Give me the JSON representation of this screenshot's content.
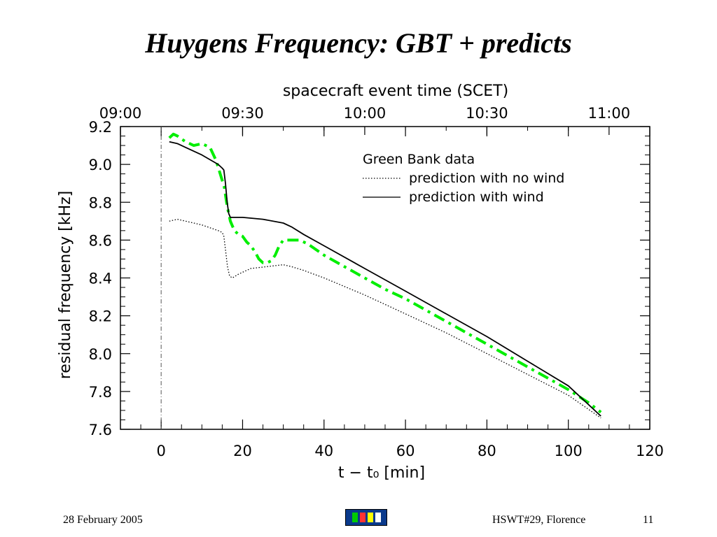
{
  "slide": {
    "title": "Huygens Frequency: GBT + predicts",
    "footer_date": "28 February 2005",
    "footer_event": "HSWT#29, Florence",
    "page_number": "11"
  },
  "colors": {
    "green": "#00ee00",
    "black": "#000000",
    "grey": "#444444",
    "logo_bg": "#0a3a8c"
  },
  "chart_data": {
    "type": "line",
    "xlabel": "t − t₀ [min]",
    "ylabel": "residual frequency [kHz]",
    "x2label": "spacecraft event time (SCET)",
    "xlim": [
      -10,
      120
    ],
    "ylim": [
      7.6,
      9.2
    ],
    "xticks": [
      0,
      20,
      40,
      60,
      80,
      100,
      120
    ],
    "xtick_labels": [
      "0",
      "20",
      "40",
      "60",
      "80",
      "100",
      "120"
    ],
    "yticks": [
      7.6,
      7.8,
      8.0,
      8.2,
      8.4,
      8.6,
      8.8,
      9.0,
      9.2
    ],
    "ytick_labels": [
      "7.6",
      "7.8",
      "8.0",
      "8.2",
      "8.4",
      "8.6",
      "8.8",
      "9.0",
      "9.2"
    ],
    "x2ticks": [
      -10,
      20,
      50,
      80,
      110
    ],
    "x2tick_labels": [
      "09:00",
      "09:30",
      "10:00",
      "10:30",
      "11:00"
    ],
    "reference_line_x": 0,
    "legend_position": "top-right",
    "series": [
      {
        "name": "Green Bank data",
        "style": "dashdot-green",
        "x": [
          2,
          3,
          4,
          6,
          8,
          10,
          12,
          13.5,
          14.5,
          15.5,
          16.2,
          17,
          18,
          19,
          20,
          21,
          22,
          23,
          24,
          25,
          26,
          27,
          28,
          29,
          30,
          32,
          34,
          36,
          40,
          45,
          50,
          55,
          60,
          65,
          70,
          75,
          80,
          85,
          90,
          95,
          100,
          105,
          108
        ],
        "y": [
          9.14,
          9.16,
          9.15,
          9.12,
          9.1,
          9.11,
          9.09,
          9.02,
          8.95,
          8.88,
          8.78,
          8.7,
          8.65,
          8.63,
          8.62,
          8.59,
          8.57,
          8.54,
          8.5,
          8.48,
          8.48,
          8.49,
          8.52,
          8.57,
          8.6,
          8.6,
          8.6,
          8.58,
          8.52,
          8.46,
          8.4,
          8.34,
          8.29,
          8.23,
          8.17,
          8.11,
          8.05,
          7.99,
          7.93,
          7.87,
          7.81,
          7.74,
          7.69
        ]
      },
      {
        "name": "prediction with no wind",
        "style": "dotted-black",
        "x": [
          2,
          4,
          6,
          10,
          14,
          15,
          15.4,
          15.8,
          16.3,
          16.8,
          17.5,
          19,
          22,
          26,
          30,
          32,
          35,
          40,
          50,
          60,
          70,
          80,
          90,
          100,
          108
        ],
        "y": [
          8.7,
          8.71,
          8.7,
          8.68,
          8.65,
          8.64,
          8.62,
          8.55,
          8.46,
          8.41,
          8.4,
          8.42,
          8.45,
          8.46,
          8.47,
          8.46,
          8.44,
          8.4,
          8.31,
          8.21,
          8.11,
          8.0,
          7.89,
          7.78,
          7.66
        ]
      },
      {
        "name": "prediction with wind",
        "style": "solid-black",
        "x": [
          2,
          4,
          6,
          10,
          14,
          15,
          15.4,
          15.8,
          16.2,
          16.6,
          17,
          18,
          20,
          25,
          30,
          32,
          35,
          40,
          50,
          60,
          70,
          80,
          90,
          100,
          108
        ],
        "y": [
          9.12,
          9.11,
          9.09,
          9.05,
          9.0,
          8.98,
          8.97,
          8.9,
          8.8,
          8.74,
          8.72,
          8.72,
          8.72,
          8.71,
          8.69,
          8.67,
          8.63,
          8.57,
          8.45,
          8.33,
          8.21,
          8.09,
          7.96,
          7.83,
          7.67
        ]
      }
    ]
  }
}
